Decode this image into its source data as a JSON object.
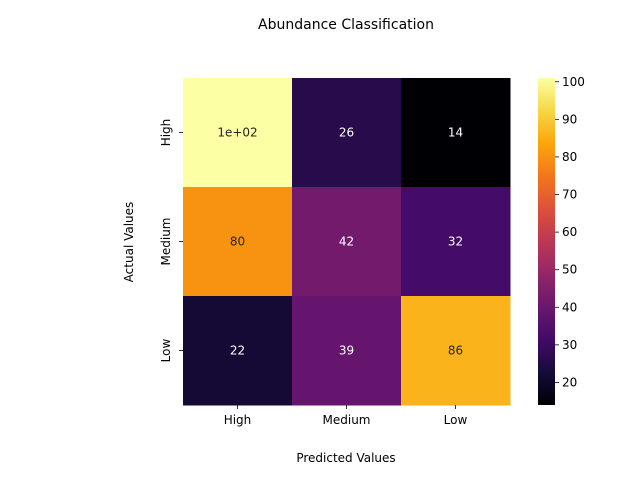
{
  "chart_data": {
    "type": "heatmap",
    "title": "Abundance Classification",
    "xlabel": "Predicted Values",
    "ylabel": "Actual Values",
    "x_categories": [
      "High",
      "Medium",
      "Low"
    ],
    "y_categories": [
      "High",
      "Medium",
      "Low"
    ],
    "values": [
      [
        101,
        26,
        14
      ],
      [
        80,
        42,
        32
      ],
      [
        22,
        39,
        86
      ]
    ],
    "cell_labels": [
      [
        "1e+02",
        "26",
        "14"
      ],
      [
        "80",
        "42",
        "32"
      ],
      [
        "22",
        "39",
        "86"
      ]
    ],
    "colormap": "inferno",
    "color_range": [
      14,
      101
    ],
    "colorbar_ticks": [
      20,
      30,
      40,
      50,
      60,
      70,
      80,
      90,
      100
    ],
    "grid": false
  }
}
